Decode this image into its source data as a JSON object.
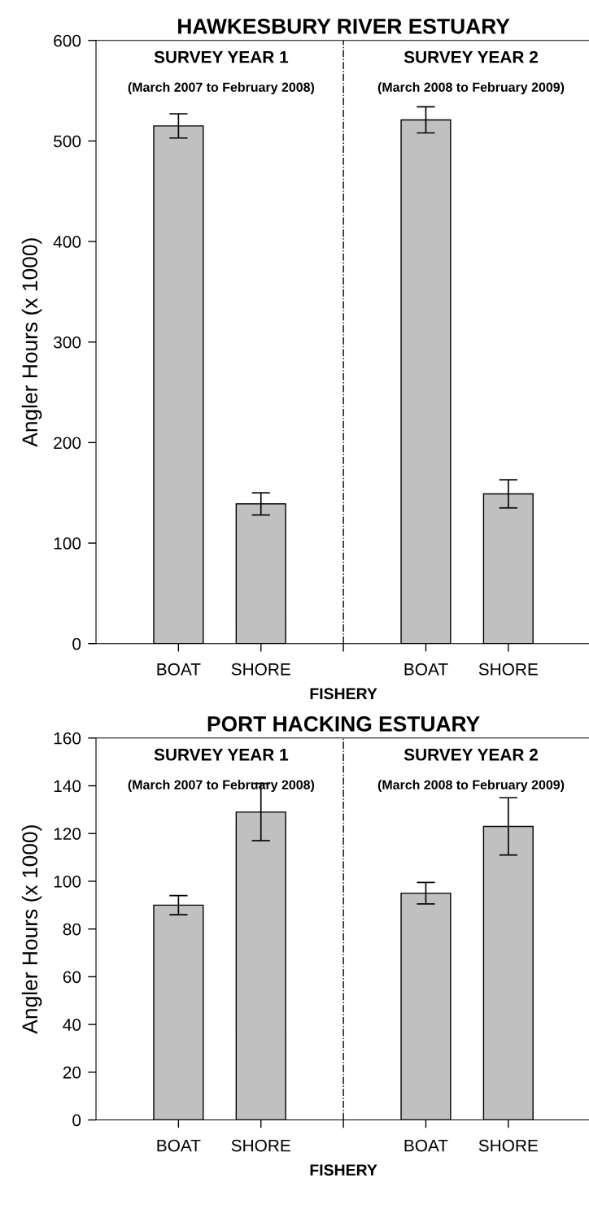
{
  "chart_data": [
    {
      "type": "bar",
      "title": "HAWKESBURY RIVER ESTUARY",
      "xlabel": "FISHERY",
      "ylabel": "Angler Hours (x 1000)",
      "categories": [
        "BOAT",
        "SHORE",
        null,
        "BOAT",
        "SHORE"
      ],
      "values": [
        515,
        139,
        null,
        521,
        149
      ],
      "errors": [
        12,
        11,
        null,
        13,
        14
      ],
      "color": "#c0c0c0",
      "ylim": [
        0,
        600
      ],
      "yticks": [
        0,
        100,
        200,
        300,
        400,
        500,
        600
      ],
      "ref_lines": [
        {
          "axis": "x",
          "line_style": "dashdot",
          "color": "#000000"
        }
      ],
      "annotations": [
        "SURVEY YEAR 1",
        "(March 2007 to February 2008)",
        "SURVEY YEAR 2",
        "(March 2008 to February 2009)"
      ]
    },
    {
      "type": "bar",
      "title": "PORT HACKING ESTUARY",
      "xlabel": "FISHERY",
      "ylabel": "Angler Hours (x 1000)",
      "categories": [
        "BOAT",
        "SHORE",
        null,
        "BOAT",
        "SHORE"
      ],
      "values": [
        90,
        129,
        null,
        95,
        123
      ],
      "errors": [
        4,
        12,
        null,
        4.5,
        12
      ],
      "color": "#c0c0c0",
      "ylim": [
        0,
        160
      ],
      "yticks": [
        0,
        20,
        40,
        60,
        80,
        100,
        120,
        140,
        160
      ],
      "ref_lines": [
        {
          "axis": "x",
          "line_style": "dashdot",
          "color": "#000000"
        }
      ],
      "annotations": [
        "SURVEY YEAR 1",
        "(March 2007 to February 2008)",
        "SURVEY YEAR 2",
        "(March 2008 to February 2009)"
      ]
    }
  ]
}
